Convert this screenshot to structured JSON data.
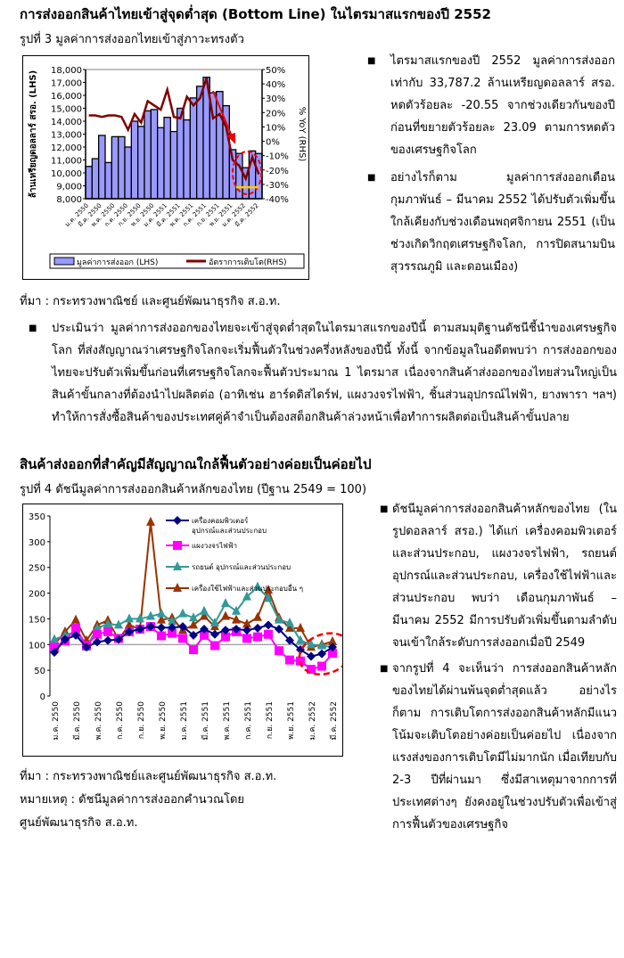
{
  "section1": {
    "heading": "การส่งออกสินค้าไทยเข้าสู่จุดต่ำสุด (Bottom Line) ในไตรมาสแรกของปี 2552",
    "figure_caption": "รูปที่ 3  มูลค่าการส่งออกไทยเข้าสู่ภาวะทรงตัว",
    "source": "ที่มา : กระทรวงพาณิชย์ และศูนย์พัฒนาธุรกิจ ส.อ.ท.",
    "bullets": [
      "ไตรมาสแรกของปี 2552 มูลค่าการส่งออกเท่ากับ 33,787.2 ล้านเหรียญดอลลาร์ สรอ. หดตัวร้อยละ -20.55 จากช่วงเดียวกันของปีก่อนที่ขยายตัวร้อยละ 23.09 ตามการหดตัวของเศรษฐกิจโลก",
      "อย่างไรก็ตาม มูลค่าการส่งออกเดือนกุมภาพันธ์ – มีนาคม 2552 ได้ปรับตัวเพิ่มขึ้นใกล้เคียงกับช่วงเดือนพฤศจิกายน 2551 (เป็นช่วงเกิดวิกฤตเศรษฐกิจโลก, การปิดสนามบินสุวรรณภูมิ และดอนเมือง)"
    ],
    "paragraph": "ประเมินว่า มูลค่าการส่งออกของไทยจะเข้าสู่จุดต่ำสุดในไตรมาสแรกของปีนี้ ตามสมมุติฐานดัชนีชี้นำของเศรษฐกิจโลก ที่ส่งสัญญาณว่าเศรษฐกิจโลกจะเริ่มฟื้นตัวในช่วงครึ่งหลังของปีนี้ ทั้งนี้ จากข้อมูลในอดีตพบว่า การส่งออกของไทยจะปรับตัวเพิ่มขึ้นก่อนที่เศรษฐกิจโลกจะฟื้นตัวประมาณ 1 ไตรมาส เนื่องจากสินค้าส่งออกของไทยส่วนใหญ่เป็นสินค้าขั้นกลางที่ต้องนำไปผลิตต่อ (อาทิเช่น ฮาร์ดดิสไดร์ฟ, แผงวงจรไฟฟ้า, ชิ้นส่วนอุปกรณ์ไฟฟ้า, ยางพารา ฯลฯ) ทำให้การสั่งซื้อสินค้าของประเทศคู่ค้าจำเป็นต้องสต็อกสินค้าล่วงหน้าเพื่อทำการผลิตต่อเป็นสินค้าขั้นปลาย"
  },
  "section2": {
    "heading": "สินค้าส่งออกที่สำคัญมีสัญญาณใกล้ฟื้นตัวอย่างค่อยเป็นค่อยไป",
    "figure_caption": "รูปที่ 4 ดัชนีมูลค่าการส่งออกสินค้าหลักของไทย (ปีฐาน 2549 = 100)",
    "source": "ที่มา : กระทรวงพาณิชย์และศูนย์พัฒนาธุรกิจ ส.อ.ท.",
    "note_line1": "หมายเหตุ : ดัชนีมูลค่าการส่งออกคำนวณโดย",
    "note_line2": "ศูนย์พัฒนาธุรกิจ ส.อ.ท.",
    "bullets": [
      "ดัชนีมูลค่าการส่งออกสินค้าหลักของไทย (ในรูปดอลลาร์ สรอ.) ได้แก่ เครื่องคอมพิวเตอร์และส่วนประกอบ, แผงวงจรไฟฟ้า, รถยนต์ อุปกรณ์และส่วนประกอบ, เครื่องใช้ไฟฟ้าและส่วนประกอบ พบว่า เดือนกุมภาพันธ์ – มีนาคม 2552 มีการปรับตัวเพิ่มขึ้นตามลำดับ จนเข้าใกล้ระดับการส่งออกเมื่อปี 2549",
      "จากรูปที่ 4 จะเห็นว่า การส่งออกสินค้าหลักของไทยได้ผ่านพ้นจุดต่ำสุดแล้ว อย่างไรก็ตาม การเติบโตการส่งออกสินค้าหลักมีแนวโน้มจะเติบโตอย่างค่อยเป็นค่อยไป เนื่องจากแรงส่งของการเติบโตมีไม่มากนัก เมื่อเทียบกับ 2-3 ปีที่ผ่านมา ซึ่งมีสาเหตุมาจากการที่ประเทศต่างๆ ยังคงอยู่ในช่วงปรับตัวเพื่อเข้าสู่การฟื้นตัวของเศรษฐกิจ"
    ]
  },
  "chart_data": [
    {
      "type": "bar+line",
      "ylabel": "ล้านเหรียญดอลลาร์ สรอ. (LHS)",
      "y2label": "% YoY (RHS)",
      "ylim": [
        8000,
        18000
      ],
      "y2lim": [
        -40,
        50
      ],
      "yticks": [
        "8,000",
        "9,000",
        "10,000",
        "11,000",
        "12,000",
        "13,000",
        "14,000",
        "15,000",
        "16,000",
        "17,000",
        "18,000"
      ],
      "y2ticks": [
        "-40%",
        "-30%",
        "-20%",
        "-10%",
        "0%",
        "10%",
        "20%",
        "30%",
        "40%",
        "50%"
      ],
      "xtick_labels": [
        "ม.ค. 2550",
        "มี.ค. 2550",
        "พ.ค. 2550",
        "ก.ค. 2550",
        "ก.ย. 2550",
        "พ.ย. 2550",
        "ม.ค. 2551",
        "มี.ค. 2551",
        "พ.ค. 2551",
        "ก.ค. 2551",
        "ก.ย. 2551",
        "พ.ย. 2551",
        "ม.ค. 2552",
        "มี.ค. 2552"
      ],
      "series": [
        {
          "name": "มูลค่าการส่งออก (LHS)",
          "axis": "left",
          "kind": "bar",
          "color": "#9999ff",
          "values": [
            10500,
            11100,
            12900,
            10800,
            12800,
            12800,
            12000,
            14000,
            13600,
            14800,
            14900,
            13500,
            14300,
            13200,
            15000,
            14100,
            15800,
            16700,
            17400,
            16200,
            16300,
            15200,
            11800,
            11500,
            10400,
            11700,
            11500
          ]
        },
        {
          "name": "อัตราการเติบโต(RHS)",
          "axis": "right",
          "kind": "line",
          "color": "#800000",
          "values": [
            18,
            18,
            17,
            18,
            18,
            17,
            8,
            19,
            13,
            28,
            25,
            22,
            36,
            17,
            16,
            31,
            25,
            30,
            44,
            16,
            19,
            10,
            -13,
            -17,
            -26,
            -11,
            -23
          ]
        }
      ],
      "legend": "bottom",
      "annotations": [
        "red-arrow-down",
        "red-dashed-circle",
        "yellow-double-arrow"
      ]
    },
    {
      "type": "line",
      "ylim": [
        0,
        350
      ],
      "yticks": [
        "0",
        "50",
        "100",
        "150",
        "200",
        "250",
        "300",
        "350"
      ],
      "xtick_labels": [
        "ม.ค. 2550",
        "มี.ค. 2550",
        "พ.ค. 2550",
        "ก.ค. 2550",
        "ก.ย. 2550",
        "พ.ย. 2550",
        "ม.ค. 2551",
        "มี.ค. 2551",
        "พ.ค. 2551",
        "ก.ค. 2551",
        "ก.ย. 2551",
        "พ.ย. 2551",
        "ม.ค. 2552",
        "มี.ค. 2552"
      ],
      "reference_line": 100,
      "series": [
        {
          "name": "เครื่องคอมพิวเตอร์ อุปกรณ์และส่วนประกอบ",
          "color": "#000080",
          "marker": "diamond",
          "values": [
            85,
            110,
            118,
            95,
            105,
            108,
            110,
            125,
            130,
            135,
            133,
            133,
            135,
            118,
            130,
            120,
            128,
            130,
            128,
            132,
            138,
            130,
            108,
            90,
            77,
            82,
            95
          ]
        },
        {
          "name": "แผงวงจรไฟฟ้า",
          "color": "#ff00ff",
          "marker": "square",
          "values": [
            95,
            107,
            132,
            98,
            120,
            125,
            112,
            125,
            130,
            135,
            117,
            122,
            112,
            90,
            118,
            98,
            115,
            125,
            112,
            115,
            120,
            88,
            70,
            68,
            52,
            58,
            83
          ]
        },
        {
          "name": "รถยนต์ อุปกรณ์และส่วนประกอบ",
          "color": "#339999",
          "marker": "triangle",
          "values": [
            110,
            118,
            125,
            95,
            132,
            140,
            138,
            150,
            150,
            155,
            160,
            145,
            160,
            152,
            165,
            142,
            180,
            165,
            193,
            212,
            190,
            148,
            142,
            108,
            100,
            98,
            95
          ]
        },
        {
          "name": "เครื่องใช้ไฟฟ้าและส่วนประกอบอื่น ๆ",
          "color": "#993300",
          "marker": "triangle",
          "values": [
            100,
            125,
            148,
            108,
            138,
            147,
            110,
            138,
            130,
            338,
            148,
            152,
            128,
            138,
            155,
            135,
            155,
            148,
            140,
            153,
            206,
            152,
            132,
            132,
            95,
            100,
            106
          ]
        }
      ],
      "legend": "top-right",
      "annotations": [
        "red-dashed-circle"
      ]
    }
  ]
}
